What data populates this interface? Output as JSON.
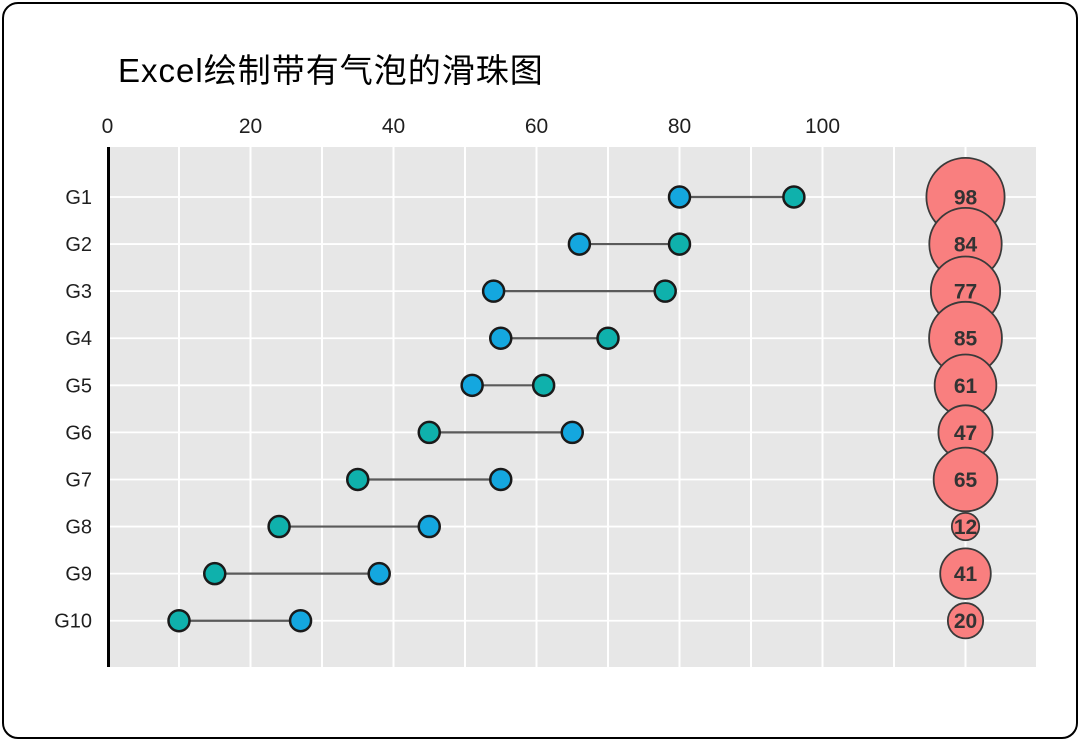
{
  "chart_data": {
    "type": "scatter",
    "variant": "dumbbell-slider-with-bubbles",
    "title": "Excel绘制带有气泡的滑珠图",
    "categories": [
      "G1",
      "G2",
      "G3",
      "G4",
      "G5",
      "G6",
      "G7",
      "G8",
      "G9",
      "G10"
    ],
    "series": [
      {
        "name": "blue-dot",
        "color": "#14A7DF",
        "values": [
          80,
          66,
          54,
          55,
          51,
          65,
          55,
          45,
          38,
          27
        ]
      },
      {
        "name": "teal-dot",
        "color": "#0FB1AC",
        "values": [
          96,
          80,
          78,
          70,
          61,
          45,
          35,
          24,
          15,
          10
        ]
      },
      {
        "name": "bubble",
        "color": "#F97F7F",
        "x_position": 120,
        "values": [
          98,
          84,
          77,
          85,
          61,
          47,
          65,
          12,
          41,
          20
        ]
      }
    ],
    "x_ticks": [
      0,
      20,
      40,
      60,
      80,
      100
    ],
    "xlim": [
      0,
      130
    ],
    "grid_step": 10,
    "grid": "on",
    "legend": "none",
    "colors": {
      "plot_bg": "#E7E7E7",
      "gridline": "#FFFFFF",
      "connector": "#5A5A5A",
      "axis": "#000000",
      "dot_border": "#1A1A1A",
      "bubble_border": "#3A3A3A",
      "tick_text": "#1F1F1F",
      "category_text": "#1F1F1F",
      "bubble_text": "#333333"
    }
  }
}
